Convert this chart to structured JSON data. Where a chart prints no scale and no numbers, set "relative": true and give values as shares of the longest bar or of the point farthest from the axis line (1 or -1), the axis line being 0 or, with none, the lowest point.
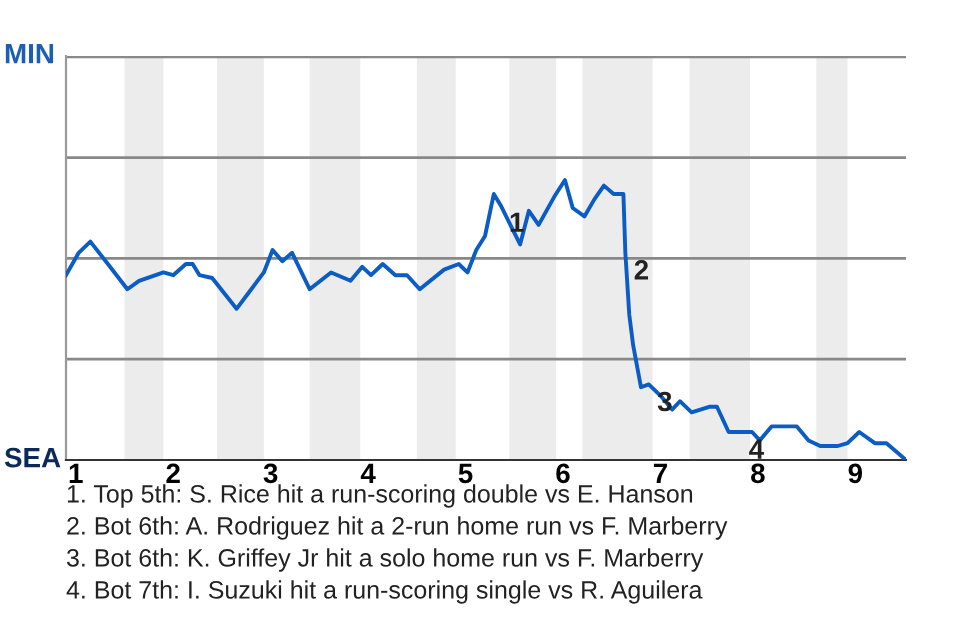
{
  "chart_data": {
    "type": "line",
    "relative": true,
    "xlim": [
      0.9,
      9.52
    ],
    "xticks": [
      1,
      2,
      3,
      4,
      5,
      6,
      7,
      8,
      9
    ],
    "marker": "none",
    "line_style": "solid",
    "ref_lines": [
      {
        "axis": "y",
        "value": 0.36,
        "color": "#888888"
      },
      {
        "axis": "y",
        "value": 0.72,
        "color": "#888888"
      },
      {
        "axis": "y",
        "value": 1.08,
        "color": "#888888"
      },
      {
        "axis": "y",
        "value": 1.44,
        "color": "#888888"
      }
    ],
    "bands": [
      {
        "axis": "x",
        "from": 1.5,
        "to": 1.9,
        "color": "#ececec"
      },
      {
        "axis": "x",
        "from": 2.45,
        "to": 2.93,
        "color": "#ececec"
      },
      {
        "axis": "x",
        "from": 3.4,
        "to": 3.92,
        "color": "#ececec"
      },
      {
        "axis": "x",
        "from": 4.5,
        "to": 4.9,
        "color": "#ececec"
      },
      {
        "axis": "x",
        "from": 5.45,
        "to": 5.93,
        "color": "#ececec"
      },
      {
        "axis": "x",
        "from": 6.2,
        "to": 6.92,
        "color": "#ececec"
      },
      {
        "axis": "x",
        "from": 7.3,
        "to": 7.92,
        "color": "#ececec"
      },
      {
        "axis": "x",
        "from": 8.6,
        "to": 8.92,
        "color": "#ececec"
      }
    ],
    "series": [
      {
        "color": "#0b5cc4",
        "x": [
          0.9,
          1.03,
          1.15,
          1.33,
          1.53,
          1.65,
          1.9,
          2,
          2.13,
          2.2,
          2.27,
          2.4,
          2.65,
          2.78,
          2.93,
          3.02,
          3.12,
          3.22,
          3.4,
          3.62,
          3.82,
          3.94,
          4.03,
          4.15,
          4.28,
          4.4,
          4.53,
          4.78,
          4.93,
          5.02,
          5.11,
          5.2,
          5.29,
          5.36,
          5.56,
          5.65,
          5.75,
          5.91,
          6.02,
          6.1,
          6.22,
          6.32,
          6.42,
          6.52,
          6.62,
          6.64,
          6.68,
          6.72,
          6.8,
          6.88,
          7,
          7.12,
          7.2,
          7.32,
          7.5,
          7.58,
          7.7,
          7.82,
          7.94,
          8.02,
          8.14,
          8.4,
          8.52,
          8.64,
          8.82,
          8.92,
          9.04,
          9.2,
          9.32,
          9.52
        ],
        "values": [
          0.66,
          0.74,
          0.78,
          0.7,
          0.61,
          0.64,
          0.67,
          0.66,
          0.7,
          0.7,
          0.66,
          0.65,
          0.54,
          0.6,
          0.67,
          0.75,
          0.71,
          0.74,
          0.61,
          0.67,
          0.64,
          0.69,
          0.66,
          0.7,
          0.66,
          0.66,
          0.61,
          0.68,
          0.7,
          0.67,
          0.75,
          0.8,
          0.95,
          0.91,
          0.77,
          0.89,
          0.84,
          0.94,
          1,
          0.9,
          0.87,
          0.93,
          0.98,
          0.95,
          0.95,
          0.74,
          0.52,
          0.41,
          0.26,
          0.27,
          0.23,
          0.18,
          0.21,
          0.17,
          0.19,
          0.19,
          0.1,
          0.1,
          0.1,
          0.07,
          0.12,
          0.12,
          0.07,
          0.05,
          0.05,
          0.06,
          0.1,
          0.06,
          0.06,
          0
        ]
      }
    ],
    "annotations": [
      "MIN",
      "SEA",
      {
        "text": "1",
        "x": 5.36,
        "y": 0.91
      },
      {
        "text": "2",
        "x": 6.64,
        "y": 0.74
      },
      {
        "text": "3",
        "x": 6.88,
        "y": 0.27
      },
      {
        "text": "4",
        "x": 7.82,
        "y": 0.1
      },
      "1. Top 5th: S. Rice hit a run-scoring double vs E. Hanson",
      "2. Bot 6th: A. Rodriguez hit a 2-run home run vs F. Marberry",
      "3. Bot 6th: K. Griffey Jr hit a solo home run vs F. Marberry",
      "4. Bot 7th: I. Suzuki hit a run-scoring single vs R. Aguilera"
    ]
  }
}
